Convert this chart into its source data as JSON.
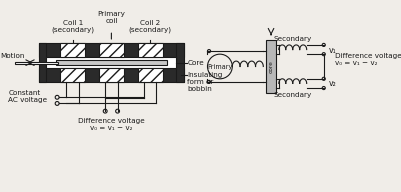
{
  "bg_color": "#f0ede8",
  "line_color": "#1a1a1a",
  "dark_fill": "#2a2a2a",
  "core_fill": "#c8c8c8",
  "white_fill": "#ffffff",
  "text_color": "#1a1a1a",
  "labels": {
    "coil1": "Coil 1\n(secondary)",
    "primary_coil": "Primary\ncoil",
    "coil2": "Coil 2\n(secondary)",
    "motion": "Motion",
    "core": "Core",
    "constant_ac": "Constant\nAC voltage",
    "insulating": "Insulating\nform or\nbobbin",
    "diff_voltage_bottom": "Difference voltage\nv₀ = v₁ − v₂",
    "primary_circ": "Primary",
    "secondary_top": "Secondary",
    "secondary_bot": "Secondary",
    "core_label": "core",
    "v1": "v₁",
    "v2": "v₂",
    "diff_voltage_right": "Difference voltage\nv₀ = v₁ − v₂"
  }
}
